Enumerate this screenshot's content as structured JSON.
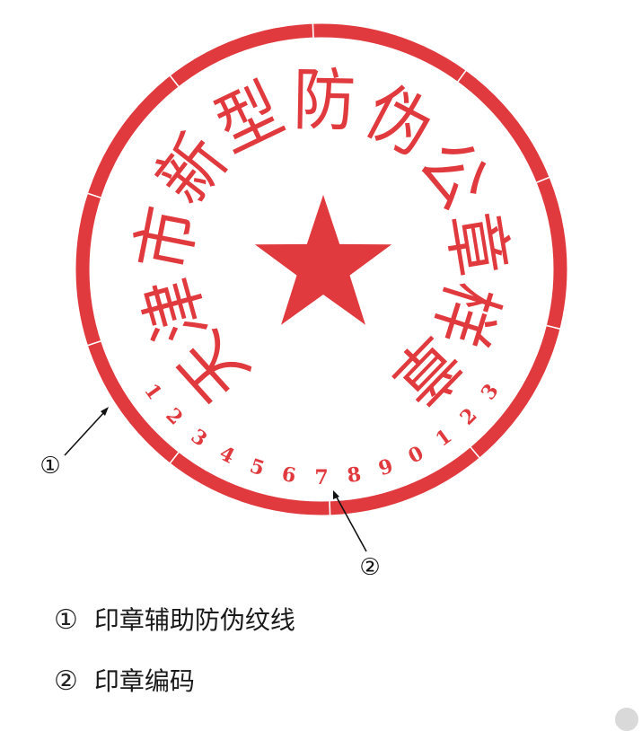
{
  "seal": {
    "outer_text": [
      "天",
      "津",
      "市",
      "新",
      "型",
      "防",
      "伪",
      "公",
      "章",
      "样",
      "章"
    ],
    "serial_number": [
      "1",
      "2",
      "3",
      "4",
      "5",
      "6",
      "7",
      "8",
      "9",
      "0",
      "1",
      "2",
      "3"
    ],
    "color": "#e03a3e"
  },
  "callouts": [
    {
      "marker": "①"
    },
    {
      "marker": "②"
    }
  ],
  "legend": [
    {
      "marker": "①",
      "text": "印章辅助防伪纹线"
    },
    {
      "marker": "②",
      "text": "印章编码"
    }
  ]
}
